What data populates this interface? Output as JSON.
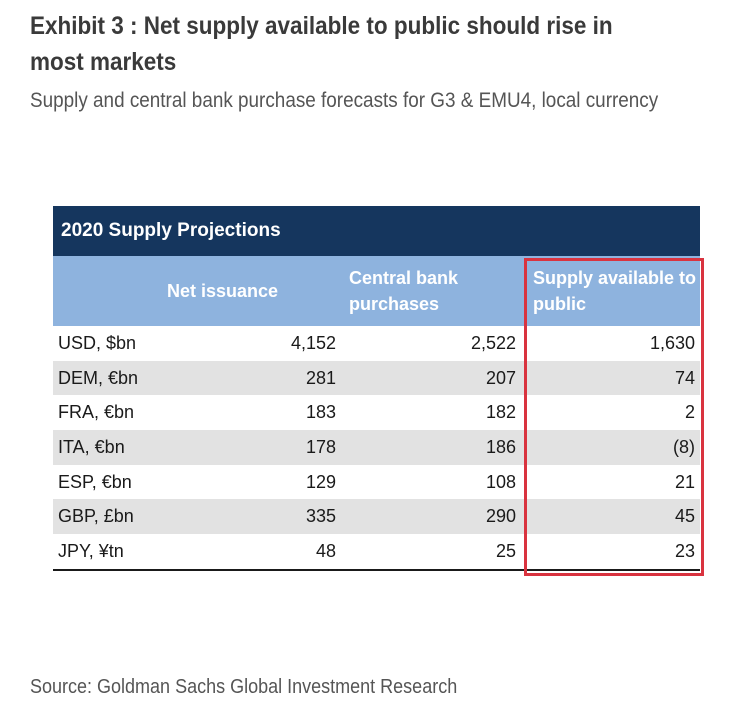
{
  "exhibit": {
    "title": "Exhibit 3 : Net supply available to public should rise in most markets",
    "subtitle": "Supply and central bank purchase forecasts for G3 & EMU4, local currency"
  },
  "table": {
    "band_title": "2020 Supply Projections",
    "columns": [
      "",
      "Net issuance",
      "Central bank purchases",
      "Supply available to public"
    ],
    "rows": [
      {
        "label": "USD, $bn",
        "net_issuance": "4,152",
        "cb_purchases": "2,522",
        "supply_public": "1,630"
      },
      {
        "label": "DEM, €bn",
        "net_issuance": "281",
        "cb_purchases": "207",
        "supply_public": "74"
      },
      {
        "label": "FRA, €bn",
        "net_issuance": "183",
        "cb_purchases": "182",
        "supply_public": "2"
      },
      {
        "label": "ITA, €bn",
        "net_issuance": "178",
        "cb_purchases": "186",
        "supply_public": "(8)"
      },
      {
        "label": "ESP, €bn",
        "net_issuance": "129",
        "cb_purchases": "108",
        "supply_public": "21"
      },
      {
        "label": "GBP, £bn",
        "net_issuance": "335",
        "cb_purchases": "290",
        "supply_public": "45"
      },
      {
        "label": "JPY, ¥tn",
        "net_issuance": "48",
        "cb_purchases": "25",
        "supply_public": "23"
      }
    ]
  },
  "source": "Source: Goldman Sachs Global Investment Research",
  "colors": {
    "band": "#15365e",
    "column_header": "#8eb3de",
    "row_shade": "#e2e2e2",
    "highlight": "#d9333f"
  }
}
